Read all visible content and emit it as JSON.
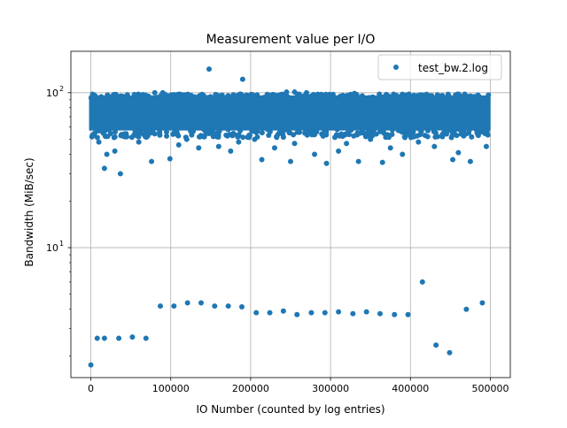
{
  "chart_data": {
    "type": "scatter",
    "title": "Measurement value per I/O",
    "xlabel": "IO Number (counted by log entries)",
    "ylabel": "Bandwidth (MiB/sec)",
    "xscale": "linear",
    "yscale": "log",
    "xlim": [
      -25000,
      525000
    ],
    "ylim": [
      1.45,
      185
    ],
    "x_ticks": [
      {
        "value": 0,
        "label": "0"
      },
      {
        "value": 100000,
        "label": "100000"
      },
      {
        "value": 200000,
        "label": "200000"
      },
      {
        "value": 300000,
        "label": "300000"
      },
      {
        "value": 400000,
        "label": "400000"
      },
      {
        "value": 500000,
        "label": "500000"
      }
    ],
    "y_ticks": [
      {
        "value": 10,
        "base": "10",
        "exp": "1"
      },
      {
        "value": 100,
        "base": "10",
        "exp": "2"
      }
    ],
    "grid": true,
    "legend_position": "top-right",
    "series": [
      {
        "name": "test_bw.2.log",
        "color": "#1f77b4",
        "dense_band": {
          "x_range": [
            0,
            498000
          ],
          "y_range": [
            57,
            96
          ]
        },
        "points": [
          [
            0,
            1.75
          ],
          [
            8000,
            2.6
          ],
          [
            17000,
            2.6
          ],
          [
            35000,
            2.6
          ],
          [
            52000,
            2.65
          ],
          [
            69000,
            2.6
          ],
          [
            87000,
            4.2
          ],
          [
            104000,
            4.2
          ],
          [
            121000,
            4.4
          ],
          [
            138000,
            4.4
          ],
          [
            155000,
            4.2
          ],
          [
            172000,
            4.2
          ],
          [
            189000,
            4.15
          ],
          [
            207000,
            3.8
          ],
          [
            224000,
            3.8
          ],
          [
            241000,
            3.9
          ],
          [
            258000,
            3.7
          ],
          [
            276000,
            3.8
          ],
          [
            293000,
            3.8
          ],
          [
            310000,
            3.85
          ],
          [
            328000,
            3.75
          ],
          [
            345000,
            3.85
          ],
          [
            362000,
            3.75
          ],
          [
            380000,
            3.7
          ],
          [
            397000,
            3.7
          ],
          [
            415000,
            6.0
          ],
          [
            432000,
            2.35
          ],
          [
            449000,
            2.1
          ],
          [
            470000,
            4.0
          ],
          [
            490000,
            4.4
          ],
          [
            148000,
            142
          ],
          [
            190000,
            122
          ],
          [
            17000,
            32.5
          ],
          [
            37000,
            30
          ],
          [
            20000,
            40
          ],
          [
            76000,
            36
          ],
          [
            99000,
            37.5
          ],
          [
            250000,
            36
          ],
          [
            295000,
            35
          ],
          [
            335000,
            36
          ],
          [
            365000,
            35.5
          ],
          [
            453000,
            37
          ],
          [
            475000,
            36
          ],
          [
            214000,
            37
          ],
          [
            10000,
            48
          ],
          [
            45000,
            52
          ],
          [
            60000,
            48
          ],
          [
            120000,
            50
          ],
          [
            160000,
            45
          ],
          [
            230000,
            44
          ],
          [
            280000,
            40
          ],
          [
            310000,
            42
          ],
          [
            390000,
            40
          ],
          [
            430000,
            45
          ],
          [
            460000,
            41
          ],
          [
            495000,
            45
          ],
          [
            5000,
            55
          ],
          [
            75000,
            55
          ],
          [
            110000,
            46
          ],
          [
            175000,
            42
          ],
          [
            205000,
            50
          ],
          [
            255000,
            47
          ],
          [
            350000,
            50
          ],
          [
            410000,
            48
          ],
          [
            440000,
            52
          ],
          [
            485000,
            53
          ],
          [
            30000,
            42
          ],
          [
            135000,
            44
          ],
          [
            185000,
            48
          ],
          [
            320000,
            47
          ],
          [
            375000,
            44
          ],
          [
            270000,
            100
          ],
          [
            255000,
            101
          ],
          [
            90000,
            100
          ],
          [
            330000,
            99
          ],
          [
            80000,
            100
          ],
          [
            245000,
            101
          ]
        ]
      }
    ]
  }
}
